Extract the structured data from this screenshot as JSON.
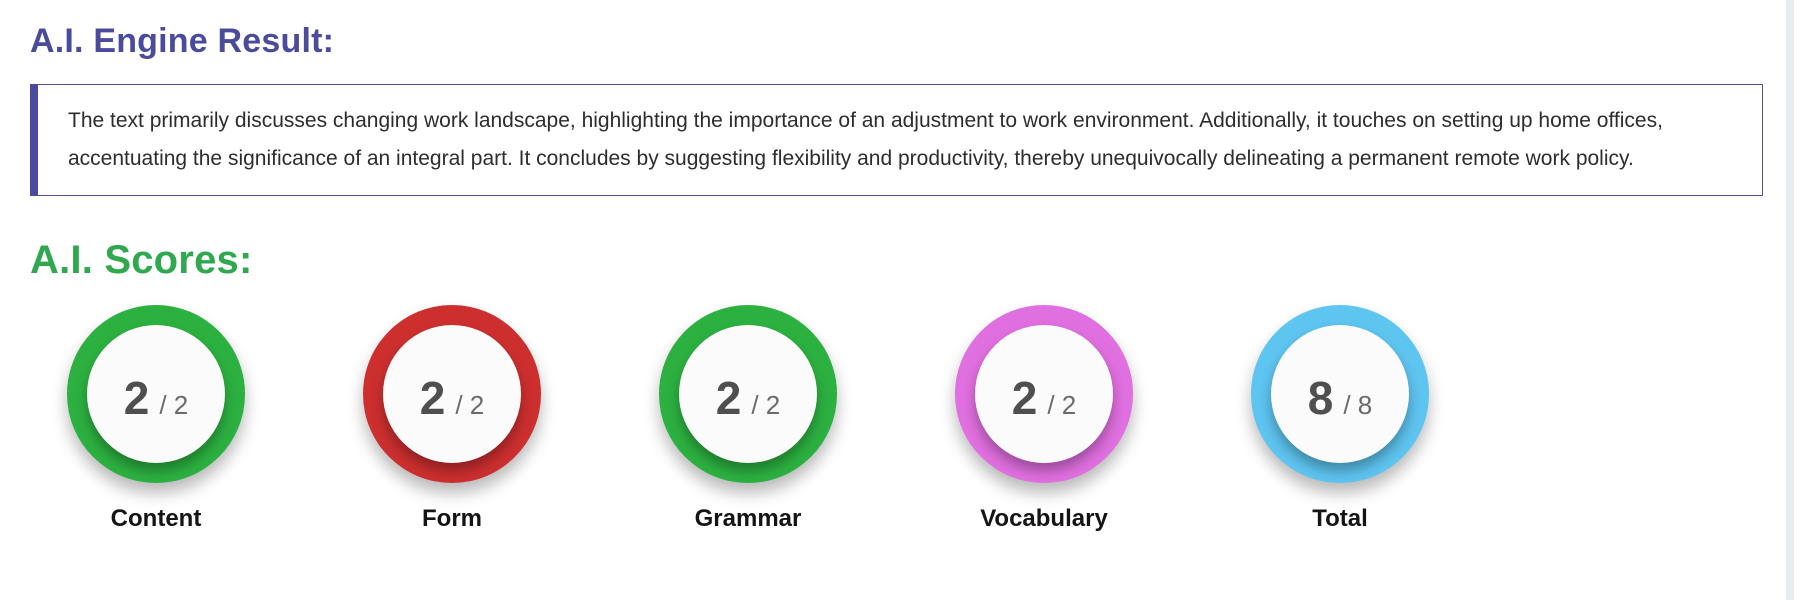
{
  "engine_result": {
    "heading": "A.I. Engine Result:",
    "text": "The text primarily discusses changing work landscape, highlighting the importance of an adjustment to work environment. Additionally, it touches on setting up home offices, accentuating the significance of an integral part. It concludes by suggesting flexibility and productivity, thereby unequivocally delineating a permanent remote work policy."
  },
  "scores_section": {
    "heading": "A.I. Scores:",
    "scores": [
      {
        "label": "Content",
        "value": "2",
        "max": "2",
        "separator": "/",
        "ring_color": "#2cb140"
      },
      {
        "label": "Form",
        "value": "2",
        "max": "2",
        "separator": "/",
        "ring_color": "#cd2f2f"
      },
      {
        "label": "Grammar",
        "value": "2",
        "max": "2",
        "separator": "/",
        "ring_color": "#2cb140"
      },
      {
        "label": "Vocabulary",
        "value": "2",
        "max": "2",
        "separator": "/",
        "ring_color": "#e06fdf"
      },
      {
        "label": "Total",
        "value": "8",
        "max": "8",
        "separator": "/",
        "ring_color": "#5ec4f0"
      }
    ]
  },
  "colors": {
    "heading_purple": "#4a4b9c",
    "heading_green": "#2fa84f",
    "result_box_border": "#52528c",
    "score_number": "#4f4f4f",
    "score_max": "#6b6b6b",
    "label_text": "#141414",
    "inner_circle": "#fbfbfb"
  }
}
